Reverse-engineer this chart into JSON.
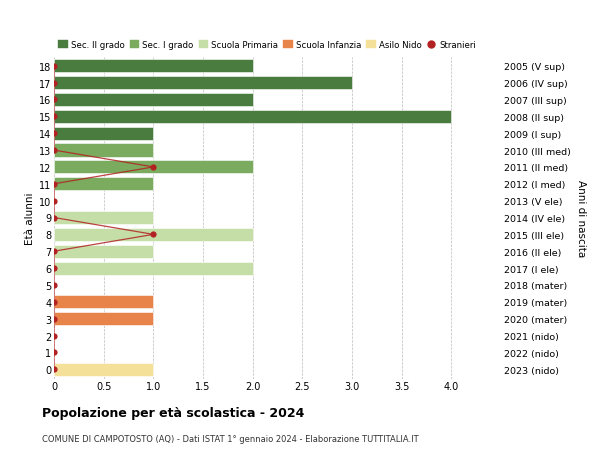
{
  "ages": [
    18,
    17,
    16,
    15,
    14,
    13,
    12,
    11,
    10,
    9,
    8,
    7,
    6,
    5,
    4,
    3,
    2,
    1,
    0
  ],
  "years": [
    "2005 (V sup)",
    "2006 (IV sup)",
    "2007 (III sup)",
    "2008 (II sup)",
    "2009 (I sup)",
    "2010 (III med)",
    "2011 (II med)",
    "2012 (I med)",
    "2013 (V ele)",
    "2014 (IV ele)",
    "2015 (III ele)",
    "2016 (II ele)",
    "2017 (I ele)",
    "2018 (mater)",
    "2019 (mater)",
    "2020 (mater)",
    "2021 (nido)",
    "2022 (nido)",
    "2023 (nido)"
  ],
  "bars": [
    {
      "age": 18,
      "value": 2,
      "color": "#4a7c3f"
    },
    {
      "age": 17,
      "value": 3,
      "color": "#4a7c3f"
    },
    {
      "age": 16,
      "value": 2,
      "color": "#4a7c3f"
    },
    {
      "age": 15,
      "value": 4,
      "color": "#4a7c3f"
    },
    {
      "age": 14,
      "value": 1,
      "color": "#4a7c3f"
    },
    {
      "age": 13,
      "value": 1,
      "color": "#7aab5e"
    },
    {
      "age": 12,
      "value": 2,
      "color": "#7aab5e"
    },
    {
      "age": 11,
      "value": 1,
      "color": "#7aab5e"
    },
    {
      "age": 10,
      "value": 0,
      "color": "#7aab5e"
    },
    {
      "age": 9,
      "value": 1,
      "color": "#c5dea8"
    },
    {
      "age": 8,
      "value": 2,
      "color": "#c5dea8"
    },
    {
      "age": 7,
      "value": 1,
      "color": "#c5dea8"
    },
    {
      "age": 6,
      "value": 2,
      "color": "#c5dea8"
    },
    {
      "age": 5,
      "value": 0,
      "color": "#c5dea8"
    },
    {
      "age": 4,
      "value": 1,
      "color": "#e8834a"
    },
    {
      "age": 3,
      "value": 1,
      "color": "#e8834a"
    },
    {
      "age": 2,
      "value": 0,
      "color": "#f5c87a"
    },
    {
      "age": 1,
      "value": 0,
      "color": "#f5c87a"
    },
    {
      "age": 0,
      "value": 1,
      "color": "#f5e099"
    }
  ],
  "stranieri": [
    {
      "age": 18,
      "value": 0
    },
    {
      "age": 17,
      "value": 0
    },
    {
      "age": 16,
      "value": 0
    },
    {
      "age": 15,
      "value": 0
    },
    {
      "age": 14,
      "value": 0
    },
    {
      "age": 13,
      "value": 0
    },
    {
      "age": 12,
      "value": 1
    },
    {
      "age": 11,
      "value": 0
    },
    {
      "age": 10,
      "value": 0
    },
    {
      "age": 9,
      "value": 0
    },
    {
      "age": 8,
      "value": 1
    },
    {
      "age": 7,
      "value": 0
    },
    {
      "age": 6,
      "value": 0
    },
    {
      "age": 5,
      "value": 0
    },
    {
      "age": 4,
      "value": 0
    },
    {
      "age": 3,
      "value": 0
    },
    {
      "age": 2,
      "value": 0
    },
    {
      "age": 1,
      "value": 0
    },
    {
      "age": 0,
      "value": 0
    }
  ],
  "legend": [
    {
      "label": "Sec. II grado",
      "color": "#4a7c3f",
      "type": "patch"
    },
    {
      "label": "Sec. I grado",
      "color": "#7aab5e",
      "type": "patch"
    },
    {
      "label": "Scuola Primaria",
      "color": "#c5dea8",
      "type": "patch"
    },
    {
      "label": "Scuola Infanzia",
      "color": "#e8834a",
      "type": "patch"
    },
    {
      "label": "Asilo Nido",
      "color": "#f5e099",
      "type": "patch"
    },
    {
      "label": "Stranieri",
      "color": "#b22222",
      "type": "dot"
    }
  ],
  "title": "Popolazione per età scolastica - 2024",
  "subtitle": "COMUNE DI CAMPOTOSTO (AQ) - Dati ISTAT 1° gennaio 2024 - Elaborazione TUTTITALIA.IT",
  "ylabel_left": "Età alunni",
  "ylabel_right": "Anni di nascita",
  "xlim": [
    0,
    4.5
  ],
  "xticks": [
    0,
    0.5,
    1.0,
    1.5,
    2.0,
    2.5,
    3.0,
    3.5,
    4.0
  ],
  "xtick_labels": [
    "0",
    "0.5",
    "1.0",
    "1.5",
    "2.0",
    "2.5",
    "3.0",
    "3.5",
    "4.0"
  ],
  "bg_color": "#ffffff",
  "grid_color": "#bbbbbb",
  "bar_height": 0.78,
  "stranieri_color": "#b22222",
  "stranieri_linewidth": 0.9,
  "stranieri_markersize": 4.5
}
